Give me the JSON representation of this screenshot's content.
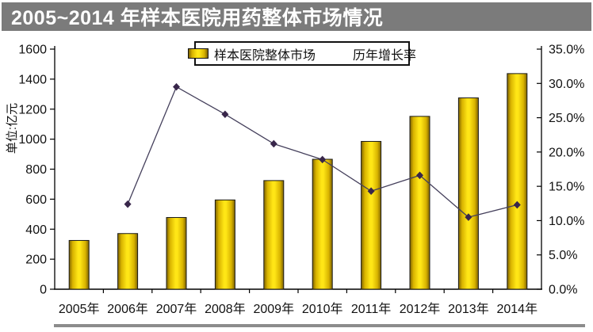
{
  "title_bar": {
    "text": "2005~2014 年样本医院用药整体市场情况",
    "bg_color": "#7b7b7b",
    "text_color": "#ffffff"
  },
  "colors": {
    "bar_center": "#ffe616",
    "bar_mid": "#d8b300",
    "bar_edge": "#7d6200",
    "bar_border": "#1a1a1a",
    "line_color": "#45405c",
    "marker_color": "#38264a",
    "axis_color": "#000000",
    "text_color": "#111111",
    "divider_color": "#8c8c8c"
  },
  "chart_data": {
    "type": "bar+line",
    "title": "2005~2014 年样本医院用药整体市场情况",
    "categories": [
      "2005年",
      "2006年",
      "2007年",
      "2008年",
      "2009年",
      "2010年",
      "2011年",
      "2012年",
      "2013年",
      "2014年"
    ],
    "series": [
      {
        "name": "样本医院整体市场",
        "type": "bar",
        "axis": "left",
        "unit": "亿元",
        "values": [
          325,
          371,
          478,
          595,
          724,
          866,
          985,
          1152,
          1275,
          1437
        ]
      },
      {
        "name": "历年增长率",
        "type": "line",
        "axis": "right",
        "unit": "%",
        "values": [
          null,
          12.4,
          29.5,
          25.5,
          21.2,
          18.9,
          14.3,
          16.6,
          10.5,
          12.3
        ]
      }
    ],
    "axes": {
      "left": {
        "label": "单位:亿元",
        "min": 0,
        "max": 1600,
        "step": 200,
        "tick_labels": [
          "0",
          "200",
          "400",
          "600",
          "800",
          "1000",
          "1200",
          "1400",
          "1600"
        ]
      },
      "right": {
        "min": 0,
        "max": 35,
        "step": 5,
        "tick_labels": [
          "0.0%",
          "5.0%",
          "10.0%",
          "15.0%",
          "20.0%",
          "25.0%",
          "30.0%",
          "35.0%"
        ]
      }
    },
    "grid": false,
    "legend_position": "top-center"
  }
}
